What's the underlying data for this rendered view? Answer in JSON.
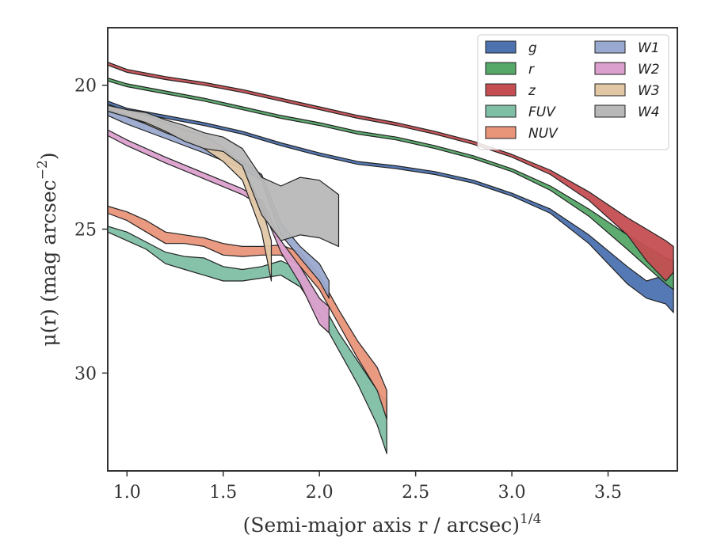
{
  "chart_data": {
    "type": "area",
    "title": "",
    "xlabel": "(Semi-major axis r / arcsec)",
    "xlabel_sup": "1/4",
    "ylabel": "μ(r) (mag arcsec",
    "ylabel_sup": "−2",
    "ylabel_end": ")",
    "xlim": [
      0.9,
      3.86
    ],
    "ylim": [
      33.4,
      18.0
    ],
    "y_inverted": true,
    "xticks": [
      1.0,
      1.5,
      2.0,
      2.5,
      3.0,
      3.5
    ],
    "xtick_labels": [
      "1.0",
      "1.5",
      "2.0",
      "2.5",
      "3.0",
      "3.5"
    ],
    "yticks": [
      20,
      25,
      30
    ],
    "ytick_labels": [
      "20",
      "25",
      "30"
    ],
    "grid": false,
    "legend": {
      "position": "top-right",
      "columns": 2
    },
    "series": [
      {
        "name": "g",
        "color": "#4c72b0",
        "x": [
          0.9,
          1.0,
          1.2,
          1.4,
          1.6,
          1.8,
          2.0,
          2.2,
          2.4,
          2.6,
          2.8,
          3.0,
          3.2,
          3.4,
          3.6,
          3.7,
          3.8,
          3.84
        ],
        "y1": [
          20.55,
          20.8,
          21.05,
          21.3,
          21.6,
          22.0,
          22.35,
          22.65,
          22.8,
          23.0,
          23.3,
          23.75,
          24.3,
          25.2,
          26.3,
          26.8,
          26.6,
          26.4
        ],
        "y2": [
          20.65,
          20.9,
          21.15,
          21.4,
          21.7,
          22.1,
          22.45,
          22.75,
          22.9,
          23.1,
          23.4,
          23.85,
          24.45,
          25.5,
          26.9,
          27.4,
          27.6,
          27.9
        ]
      },
      {
        "name": "r",
        "color": "#55a868",
        "x": [
          0.9,
          1.0,
          1.2,
          1.4,
          1.6,
          1.8,
          2.0,
          2.2,
          2.4,
          2.6,
          2.8,
          3.0,
          3.2,
          3.4,
          3.6,
          3.7,
          3.8,
          3.84
        ],
        "y1": [
          19.75,
          19.95,
          20.2,
          20.45,
          20.75,
          21.05,
          21.3,
          21.6,
          21.8,
          22.1,
          22.45,
          22.9,
          23.5,
          24.3,
          25.2,
          25.6,
          26.0,
          26.1
        ],
        "y2": [
          19.85,
          20.05,
          20.3,
          20.55,
          20.85,
          21.15,
          21.4,
          21.7,
          21.9,
          22.2,
          22.55,
          23.0,
          23.65,
          24.55,
          25.7,
          26.3,
          26.9,
          27.1
        ]
      },
      {
        "name": "z",
        "color": "#c44e52",
        "x": [
          0.9,
          1.0,
          1.2,
          1.4,
          1.6,
          1.8,
          2.0,
          2.2,
          2.4,
          2.6,
          2.8,
          3.0,
          3.2,
          3.4,
          3.6,
          3.7,
          3.8,
          3.84
        ],
        "y1": [
          19.2,
          19.45,
          19.7,
          19.9,
          20.15,
          20.45,
          20.75,
          21.05,
          21.3,
          21.6,
          21.95,
          22.4,
          22.95,
          23.7,
          24.6,
          25.0,
          25.4,
          25.6
        ],
        "y2": [
          19.3,
          19.55,
          19.8,
          20.0,
          20.25,
          20.55,
          20.85,
          21.15,
          21.4,
          21.7,
          22.05,
          22.5,
          23.1,
          24.0,
          25.2,
          26.1,
          26.8,
          26.5
        ]
      },
      {
        "name": "FUV",
        "color": "#7fbfa5",
        "x": [
          0.9,
          1.0,
          1.1,
          1.2,
          1.3,
          1.4,
          1.5,
          1.6,
          1.7,
          1.8,
          1.9,
          2.0,
          2.1,
          2.2,
          2.3,
          2.35
        ],
        "y1": [
          24.9,
          25.1,
          25.45,
          25.8,
          25.95,
          26.0,
          26.3,
          26.4,
          26.3,
          26.1,
          26.4,
          27.4,
          28.6,
          29.6,
          30.6,
          31.0
        ],
        "y2": [
          25.1,
          25.4,
          25.7,
          26.2,
          26.4,
          26.6,
          26.8,
          26.8,
          26.7,
          26.6,
          27.0,
          28.0,
          29.2,
          30.4,
          31.8,
          32.8
        ]
      },
      {
        "name": "NUV",
        "color": "#e8957a",
        "x": [
          0.9,
          1.0,
          1.1,
          1.2,
          1.3,
          1.4,
          1.5,
          1.6,
          1.7,
          1.8,
          1.9,
          2.0,
          2.1,
          2.2,
          2.3,
          2.35
        ],
        "y1": [
          24.2,
          24.4,
          24.7,
          25.1,
          25.2,
          25.3,
          25.5,
          25.6,
          25.6,
          25.55,
          25.8,
          26.6,
          27.8,
          28.9,
          29.8,
          30.6
        ],
        "y2": [
          24.45,
          24.7,
          25.1,
          25.5,
          25.5,
          25.6,
          25.9,
          25.95,
          25.9,
          25.9,
          26.3,
          27.1,
          28.3,
          29.5,
          30.6,
          31.6
        ]
      },
      {
        "name": "W1",
        "color": "#9aa9cf",
        "x": [
          0.9,
          1.0,
          1.2,
          1.4,
          1.6,
          1.7,
          1.8,
          1.9,
          2.0,
          2.05
        ],
        "y1": [
          20.85,
          21.1,
          21.6,
          22.15,
          22.65,
          23.1,
          24.8,
          25.6,
          26.2,
          26.8
        ],
        "y2": [
          21.05,
          21.35,
          21.85,
          22.35,
          22.9,
          23.3,
          25.2,
          26.0,
          26.8,
          27.4
        ]
      },
      {
        "name": "W2",
        "color": "#dba0ce",
        "x": [
          0.9,
          1.0,
          1.2,
          1.4,
          1.6,
          1.7,
          1.8,
          1.9,
          2.0,
          2.05
        ],
        "y1": [
          21.55,
          21.9,
          22.5,
          23.05,
          23.6,
          24.0,
          25.4,
          26.3,
          27.4,
          27.7
        ],
        "y2": [
          21.75,
          22.1,
          22.7,
          23.25,
          23.8,
          24.2,
          25.8,
          26.9,
          28.3,
          28.6
        ]
      },
      {
        "name": "W3",
        "color": "#e2c7a5",
        "x": [
          0.9,
          1.0,
          1.1,
          1.2,
          1.3,
          1.4,
          1.5,
          1.6,
          1.7,
          1.75
        ],
        "y1": [
          20.7,
          20.85,
          21.05,
          21.3,
          21.55,
          21.75,
          22.15,
          22.8,
          24.2,
          25.4
        ],
        "y2": [
          20.85,
          21.05,
          21.35,
          21.65,
          21.9,
          22.2,
          22.65,
          23.3,
          25.1,
          26.8
        ]
      },
      {
        "name": "W4",
        "color": "#b8b8b8",
        "x": [
          0.9,
          1.0,
          1.1,
          1.2,
          1.3,
          1.4,
          1.5,
          1.6,
          1.7,
          1.8,
          1.9,
          2.0,
          2.1
        ],
        "y1": [
          20.7,
          20.85,
          20.95,
          21.2,
          21.4,
          21.65,
          21.8,
          22.2,
          23.2,
          23.5,
          23.2,
          23.3,
          23.8
        ],
        "y2": [
          20.9,
          21.1,
          21.3,
          21.6,
          21.95,
          22.2,
          22.3,
          22.8,
          24.5,
          25.4,
          25.2,
          25.3,
          25.6
        ]
      }
    ]
  }
}
